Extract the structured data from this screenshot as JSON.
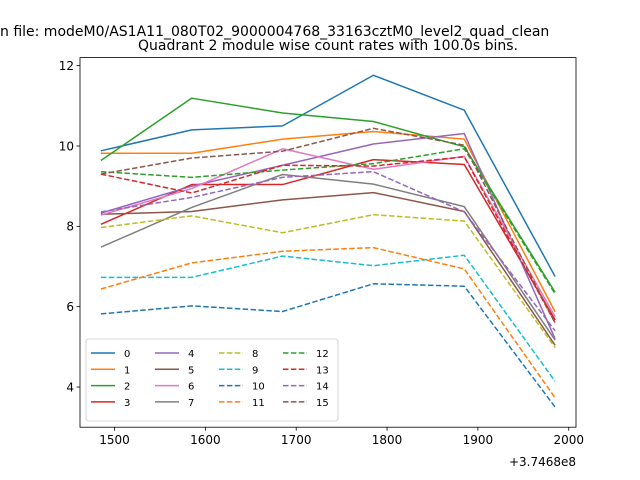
{
  "suptitle": "n file: modeM0/AS1A11_080T02_9000004768_33163cztM0_level2_quad_clean",
  "chart_data": {
    "type": "line",
    "title": "Quadrant 2 module wise count rates with 100.0s bins.",
    "xlabel": "",
    "ylabel": "",
    "x_offset_label": "+3.7468e8",
    "x": [
      1485,
      1585,
      1685,
      1785,
      1885,
      1985
    ],
    "xlim": [
      1462,
      2008
    ],
    "ylim": [
      3.0,
      12.2
    ],
    "xticks": [
      1500,
      1600,
      1700,
      1800,
      1900,
      2000
    ],
    "yticks": [
      4,
      6,
      8,
      10,
      12
    ],
    "legend_position": "lower-left",
    "legend_columns": 4,
    "series": [
      {
        "name": "0",
        "color": "#1f77b4",
        "dash": "solid",
        "values": [
          9.88,
          10.4,
          10.5,
          11.76,
          10.89,
          6.75
        ]
      },
      {
        "name": "1",
        "color": "#ff7f0e",
        "dash": "solid",
        "values": [
          9.82,
          9.82,
          10.17,
          10.36,
          10.17,
          5.87
        ]
      },
      {
        "name": "2",
        "color": "#2ca02c",
        "dash": "solid",
        "values": [
          9.64,
          11.19,
          10.82,
          10.61,
          9.98,
          6.36
        ]
      },
      {
        "name": "3",
        "color": "#d62728",
        "dash": "solid",
        "values": [
          8.05,
          9.04,
          9.04,
          9.66,
          9.54,
          5.67
        ]
      },
      {
        "name": "4",
        "color": "#9467bd",
        "dash": "solid",
        "values": [
          8.33,
          9.0,
          9.52,
          10.05,
          10.31,
          5.2
        ]
      },
      {
        "name": "5",
        "color": "#8c564b",
        "dash": "solid",
        "values": [
          8.3,
          8.37,
          8.66,
          8.84,
          8.37,
          5.04
        ]
      },
      {
        "name": "6",
        "color": "#e377c2",
        "dash": "solid",
        "values": [
          8.28,
          8.94,
          9.93,
          9.42,
          9.74,
          5.75
        ]
      },
      {
        "name": "7",
        "color": "#7f7f7f",
        "dash": "solid",
        "values": [
          7.48,
          8.47,
          9.29,
          9.05,
          8.49,
          5.17
        ]
      },
      {
        "name": "8",
        "color": "#bcbd22",
        "dash": "dashed",
        "values": [
          7.97,
          8.26,
          7.84,
          8.29,
          8.13,
          4.98
        ]
      },
      {
        "name": "9",
        "color": "#17becf",
        "dash": "dashed",
        "values": [
          6.73,
          6.73,
          7.26,
          7.02,
          7.28,
          4.14
        ]
      },
      {
        "name": "10",
        "color": "#1f77b4",
        "dash": "dashed",
        "values": [
          5.82,
          6.02,
          5.88,
          6.57,
          6.51,
          3.5
        ]
      },
      {
        "name": "11",
        "color": "#ff7f0e",
        "dash": "dashed",
        "values": [
          6.44,
          7.09,
          7.38,
          7.47,
          6.94,
          3.73
        ]
      },
      {
        "name": "12",
        "color": "#2ca02c",
        "dash": "dashed",
        "values": [
          9.36,
          9.22,
          9.4,
          9.56,
          9.93,
          6.32
        ]
      },
      {
        "name": "13",
        "color": "#d62728",
        "dash": "dashed",
        "values": [
          9.3,
          8.83,
          9.52,
          9.5,
          9.73,
          5.6
        ]
      },
      {
        "name": "14",
        "color": "#9467bd",
        "dash": "dashed",
        "values": [
          8.36,
          8.72,
          9.22,
          9.36,
          8.36,
          5.4
        ]
      },
      {
        "name": "15",
        "color": "#8c564b",
        "dash": "dashed",
        "values": [
          9.3,
          9.7,
          9.87,
          10.44,
          10.02,
          5.59
        ]
      }
    ]
  }
}
